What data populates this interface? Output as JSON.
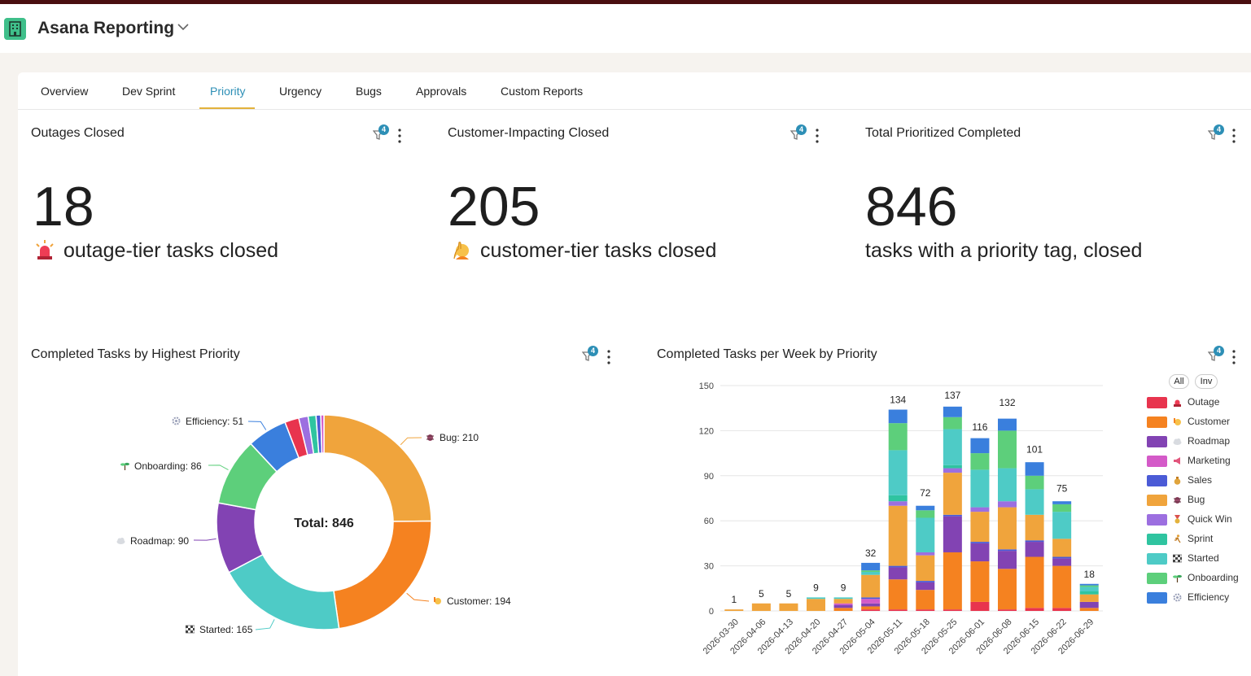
{
  "app": {
    "title": "Asana Reporting",
    "icon": "building-icon"
  },
  "colors": {
    "accent": "#2d8fb6",
    "tab_underline": "#e3b23c",
    "topbar": "#4a0f10"
  },
  "tabs": [
    {
      "label": "Overview",
      "active": false
    },
    {
      "label": "Dev Sprint",
      "active": false
    },
    {
      "label": "Priority",
      "active": true
    },
    {
      "label": "Urgency",
      "active": false
    },
    {
      "label": "Bugs",
      "active": false
    },
    {
      "label": "Approvals",
      "active": false
    },
    {
      "label": "Custom Reports",
      "active": false
    }
  ],
  "filter_count": "4",
  "kpis": [
    {
      "title": "Outages Closed",
      "value": "18",
      "subtitle": "outage-tier tasks closed",
      "icon": "siren-icon"
    },
    {
      "title": "Customer-Impacting Closed",
      "value": "205",
      "subtitle": "customer-tier tasks closed",
      "icon": "raising-hand-icon"
    },
    {
      "title": "Total Prioritized Completed",
      "value": "846",
      "subtitle": "tasks with a priority tag, closed"
    }
  ],
  "donut": {
    "title": "Completed Tasks by Highest Priority",
    "center_label": "Total: 846",
    "labels": [
      {
        "text": "Bug: 210",
        "icon": "bug-icon"
      },
      {
        "text": "Customer: 194",
        "icon": "raising-hand-icon"
      },
      {
        "text": "Started: 165",
        "icon": "checkered-flag-icon"
      },
      {
        "text": "Roadmap: 90",
        "icon": "cloud-icon"
      },
      {
        "text": "Onboarding: 86",
        "icon": "seedling-icon"
      },
      {
        "text": "Efficiency: 51",
        "icon": "gear-icon"
      }
    ]
  },
  "weekly": {
    "title": "Completed Tasks per Week by Priority",
    "legend_buttons": {
      "all": "All",
      "inv": "Inv"
    }
  },
  "chart_data": [
    {
      "type": "pie",
      "title": "Completed Tasks by Highest Priority",
      "center_label": "Total: 846",
      "slices": [
        {
          "name": "Bug",
          "value": 210,
          "color": "#f0a43c"
        },
        {
          "name": "Customer",
          "value": 194,
          "color": "#f58220"
        },
        {
          "name": "Started",
          "value": 165,
          "color": "#4ecbc6"
        },
        {
          "name": "Roadmap",
          "value": 90,
          "color": "#8243b3"
        },
        {
          "name": "Onboarding",
          "value": 86,
          "color": "#5dcf7b"
        },
        {
          "name": "Efficiency",
          "value": 51,
          "color": "#3a7fdd"
        },
        {
          "name": "Outage",
          "value": 18,
          "color": "#e8344e"
        },
        {
          "name": "Quick Win",
          "value": 12,
          "color": "#9c6fe0"
        },
        {
          "name": "Sprint",
          "value": 10,
          "color": "#2fc4a0"
        },
        {
          "name": "Sales",
          "value": 6,
          "color": "#4b5bd6"
        },
        {
          "name": "Marketing",
          "value": 4,
          "color": "#d45ac8"
        }
      ]
    },
    {
      "type": "bar",
      "stacked": true,
      "title": "Completed Tasks per Week by Priority",
      "categories": [
        "2026-03-30",
        "2026-04-06",
        "2026-04-13",
        "2026-04-20",
        "2026-04-27",
        "2026-05-04",
        "2026-05-11",
        "2026-05-18",
        "2026-05-25",
        "2026-06-01",
        "2026-06-08",
        "2026-06-15",
        "2026-06-22",
        "2026-06-29"
      ],
      "totals": [
        1,
        5,
        5,
        9,
        9,
        32,
        134,
        72,
        137,
        116,
        132,
        101,
        75,
        18
      ],
      "ylim": [
        0,
        150
      ],
      "yticks": [
        0,
        30,
        60,
        90,
        120,
        150
      ],
      "grid": true,
      "legend_position": "right",
      "series": [
        {
          "name": "Outage",
          "color": "#e8344e",
          "icon": "siren-icon",
          "values": [
            0,
            0,
            0,
            0,
            0,
            1,
            1,
            1,
            1,
            6,
            1,
            2,
            2,
            0
          ]
        },
        {
          "name": "Customer",
          "color": "#f58220",
          "icon": "raising-hand-icon",
          "values": [
            0,
            0,
            0,
            0,
            2,
            2,
            20,
            13,
            38,
            27,
            27,
            34,
            28,
            2
          ]
        },
        {
          "name": "Roadmap",
          "color": "#8243b3",
          "icon": "cloud-icon",
          "values": [
            0,
            0,
            0,
            0,
            2,
            2,
            8,
            5,
            24,
            12,
            12,
            10,
            5,
            4
          ]
        },
        {
          "name": "Marketing",
          "color": "#d45ac8",
          "icon": "megaphone-icon",
          "values": [
            0,
            0,
            0,
            0,
            1,
            3,
            0,
            0,
            0,
            0,
            0,
            0,
            0,
            0
          ]
        },
        {
          "name": "Sales",
          "color": "#4b5bd6",
          "icon": "money-bag-icon",
          "values": [
            0,
            0,
            0,
            0,
            0,
            1,
            1,
            1,
            1,
            1,
            1,
            1,
            1,
            0
          ]
        },
        {
          "name": "Bug",
          "color": "#f0a43c",
          "icon": "bug-icon",
          "values": [
            1,
            5,
            5,
            8,
            3,
            15,
            40,
            17,
            28,
            20,
            28,
            17,
            12,
            5
          ]
        },
        {
          "name": "Quick Win",
          "color": "#9c6fe0",
          "icon": "medal-icon",
          "values": [
            0,
            0,
            0,
            0,
            0,
            0,
            3,
            2,
            3,
            3,
            4,
            0,
            0,
            0
          ]
        },
        {
          "name": "Sprint",
          "color": "#2fc4a0",
          "icon": "runner-icon",
          "values": [
            0,
            0,
            0,
            0,
            0,
            0,
            4,
            0,
            2,
            0,
            0,
            0,
            0,
            2
          ]
        },
        {
          "name": "Started",
          "color": "#4ecbc6",
          "icon": "checkered-flag-icon",
          "values": [
            0,
            0,
            0,
            1,
            1,
            2,
            30,
            23,
            24,
            25,
            22,
            17,
            18,
            3
          ]
        },
        {
          "name": "Onboarding",
          "color": "#5dcf7b",
          "icon": "seedling-icon",
          "values": [
            0,
            0,
            0,
            0,
            0,
            1,
            18,
            5,
            8,
            11,
            25,
            9,
            5,
            1
          ]
        },
        {
          "name": "Efficiency",
          "color": "#3a7fdd",
          "icon": "gear-icon",
          "values": [
            0,
            0,
            0,
            0,
            0,
            5,
            9,
            3,
            7,
            10,
            8,
            9,
            2,
            1
          ]
        }
      ]
    }
  ]
}
